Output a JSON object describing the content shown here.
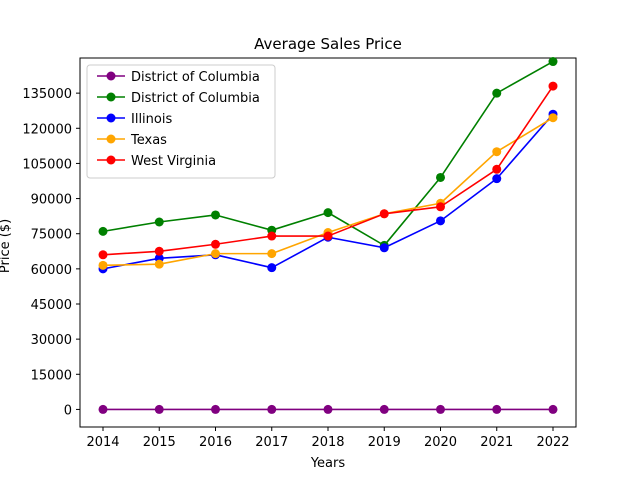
{
  "chart_data": {
    "type": "line",
    "title": "Average Sales Price",
    "xlabel": "Years",
    "ylabel": "Price ($)",
    "categories": [
      "2014",
      "2015",
      "2016",
      "2017",
      "2018",
      "2019",
      "2020",
      "2021",
      "2022"
    ],
    "yticks": [
      "0",
      "15000",
      "30000",
      "45000",
      "60000",
      "75000",
      "90000",
      "105000",
      "120000",
      "135000"
    ],
    "ylim": [
      -7500,
      150000
    ],
    "grid": false,
    "legend_position": "top-left",
    "series": [
      {
        "name": "District of Columbia",
        "color": "#800080",
        "values": [
          0,
          0,
          0,
          0,
          0,
          0,
          0,
          0,
          0
        ]
      },
      {
        "name": "District of Columbia",
        "color": "#008000",
        "values": [
          76000,
          80000,
          83000,
          76500,
          84000,
          70000,
          99000,
          135000,
          148500
        ]
      },
      {
        "name": "Illinois",
        "color": "#0000ff",
        "values": [
          60000,
          64500,
          66000,
          60500,
          73500,
          69000,
          80500,
          98500,
          126000
        ]
      },
      {
        "name": "Texas",
        "color": "#ffa500",
        "values": [
          61500,
          62000,
          66500,
          66500,
          75500,
          83500,
          88000,
          110000,
          124500
        ]
      },
      {
        "name": "West Virginia",
        "color": "#ff0000",
        "values": [
          66000,
          67500,
          70500,
          74000,
          74000,
          83500,
          86500,
          102500,
          138000
        ]
      }
    ]
  }
}
